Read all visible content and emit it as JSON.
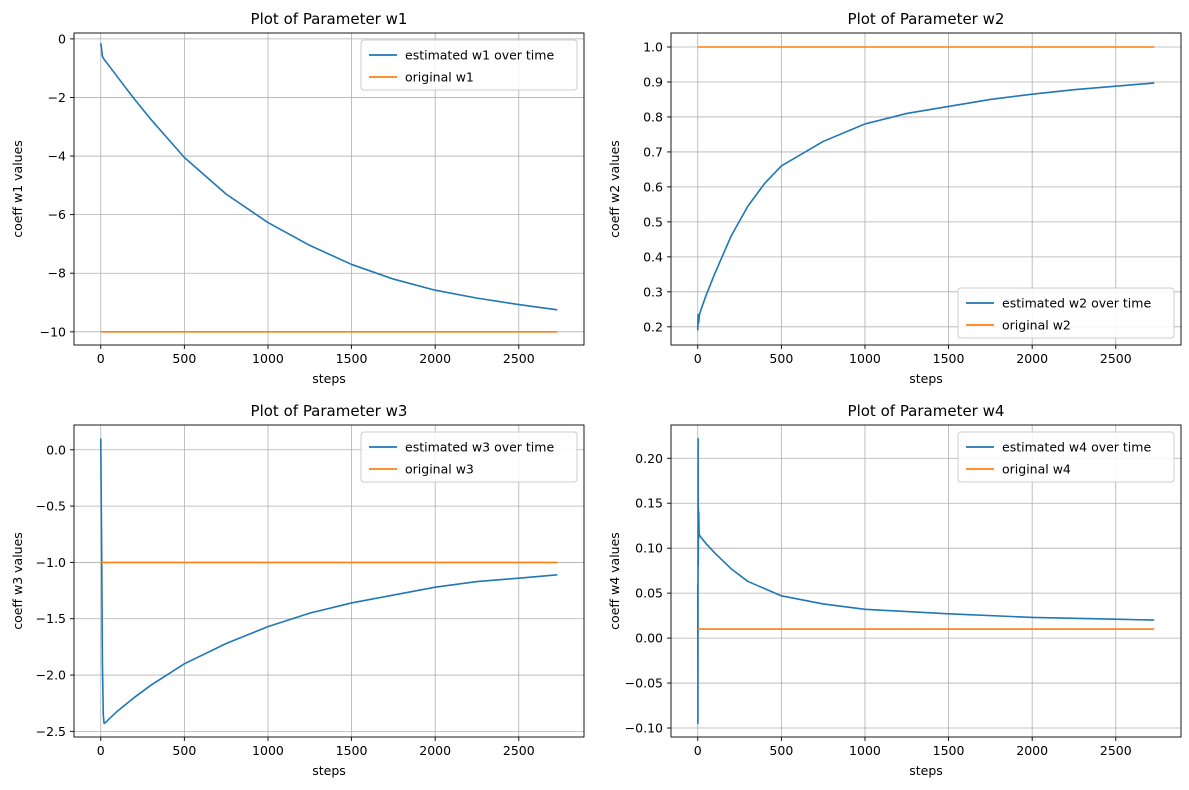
{
  "colors": {
    "estimated": "#1f77b4",
    "original": "#ff7f0e",
    "grid": "#b0b0b0",
    "axes": "#000000"
  },
  "chart_data": [
    {
      "type": "line",
      "title": "Plot of Parameter w1",
      "xlabel": "steps",
      "ylabel": "coeff w1 values",
      "xlim": [
        -160,
        2890
      ],
      "ylim": [
        -10.45,
        0.2
      ],
      "xticks": [
        0,
        500,
        1000,
        1500,
        2000,
        2500
      ],
      "yticks": [
        -10,
        -8,
        -6,
        -4,
        -2,
        0
      ],
      "yticklabels": [
        "−10",
        "−8",
        "−6",
        "−4",
        "−2",
        "0"
      ],
      "grid": true,
      "legend_position": "upper right",
      "series": [
        {
          "name": "estimated w1 over time",
          "color": "#1f77b4",
          "x": [
            0,
            5,
            10,
            20,
            50,
            100,
            200,
            300,
            500,
            750,
            1000,
            1250,
            1500,
            1750,
            2000,
            2250,
            2500,
            2730
          ],
          "y": [
            -0.15,
            -0.35,
            -0.6,
            -0.7,
            -0.92,
            -1.3,
            -2.05,
            -2.75,
            -4.05,
            -5.3,
            -6.27,
            -7.05,
            -7.7,
            -8.2,
            -8.58,
            -8.85,
            -9.07,
            -9.25
          ]
        },
        {
          "name": "original w1",
          "color": "#ff7f0e",
          "x": [
            0,
            2730
          ],
          "y": [
            -10,
            -10
          ]
        }
      ]
    },
    {
      "type": "line",
      "title": "Plot of Parameter  w2",
      "xlabel": "steps",
      "ylabel": "coeff  w2 values",
      "xlim": [
        -160,
        2890
      ],
      "ylim": [
        0.148,
        1.04
      ],
      "xticks": [
        0,
        500,
        1000,
        1500,
        2000,
        2500
      ],
      "yticks": [
        0.2,
        0.3,
        0.4,
        0.5,
        0.6,
        0.7,
        0.8,
        0.9,
        1.0
      ],
      "yticklabels": [
        "0.2",
        "0.3",
        "0.4",
        "0.5",
        "0.6",
        "0.7",
        "0.8",
        "0.9",
        "1.0"
      ],
      "grid": true,
      "legend_position": "lower right",
      "series": [
        {
          "name": "estimated  w2 over time",
          "color": "#1f77b4",
          "x": [
            0,
            2,
            5,
            10,
            20,
            50,
            100,
            200,
            300,
            400,
            500,
            750,
            1000,
            1250,
            1500,
            1750,
            2000,
            2250,
            2500,
            2730
          ],
          "y": [
            0.19,
            0.235,
            0.21,
            0.235,
            0.25,
            0.29,
            0.35,
            0.46,
            0.545,
            0.61,
            0.66,
            0.73,
            0.78,
            0.81,
            0.83,
            0.85,
            0.865,
            0.878,
            0.888,
            0.897
          ]
        },
        {
          "name": "original w2",
          "color": "#ff7f0e",
          "x": [
            0,
            2730
          ],
          "y": [
            1.0,
            1.0
          ]
        }
      ]
    },
    {
      "type": "line",
      "title": "Plot of Parameter w3",
      "xlabel": "steps",
      "ylabel": "coeff w3 values",
      "xlim": [
        -160,
        2890
      ],
      "ylim": [
        -2.55,
        0.22
      ],
      "xticks": [
        0,
        500,
        1000,
        1500,
        2000,
        2500
      ],
      "yticks": [
        -2.5,
        -2.0,
        -1.5,
        -1.0,
        -0.5,
        0.0
      ],
      "yticklabels": [
        "−2.5",
        "−2.0",
        "−1.5",
        "−1.0",
        "−0.5",
        "0.0"
      ],
      "grid": true,
      "legend_position": "upper right",
      "series": [
        {
          "name": "estimated w3 over time",
          "color": "#1f77b4",
          "x": [
            0,
            5,
            10,
            15,
            20,
            30,
            50,
            100,
            200,
            300,
            500,
            750,
            1000,
            1250,
            1500,
            1750,
            2000,
            2250,
            2500,
            2730
          ],
          "y": [
            0.1,
            -0.8,
            -1.9,
            -2.35,
            -2.43,
            -2.42,
            -2.39,
            -2.32,
            -2.2,
            -2.09,
            -1.9,
            -1.72,
            -1.57,
            -1.45,
            -1.36,
            -1.29,
            -1.22,
            -1.17,
            -1.14,
            -1.11
          ]
        },
        {
          "name": "original w3",
          "color": "#ff7f0e",
          "x": [
            0,
            2730
          ],
          "y": [
            -1.0,
            -1.0
          ]
        }
      ]
    },
    {
      "type": "line",
      "title": "Plot of Parameter w4",
      "xlabel": "steps",
      "ylabel": "coeff w4 values",
      "xlim": [
        -160,
        2890
      ],
      "ylim": [
        -0.11,
        0.237
      ],
      "xticks": [
        0,
        500,
        1000,
        1500,
        2000,
        2500
      ],
      "yticks": [
        -0.1,
        -0.05,
        0.0,
        0.05,
        0.1,
        0.15,
        0.2
      ],
      "yticklabels": [
        "−0.10",
        "−0.05",
        "0.00",
        "0.05",
        "0.10",
        "0.15",
        "0.20"
      ],
      "grid": true,
      "legend_position": "upper right",
      "series": [
        {
          "name": "estimated w4 over time",
          "color": "#1f77b4",
          "x": [
            0,
            1,
            2,
            3,
            4,
            5,
            6,
            8,
            10,
            15,
            20,
            50,
            100,
            200,
            300,
            500,
            750,
            1000,
            1500,
            2000,
            2500,
            2730
          ],
          "y": [
            0.06,
            -0.095,
            0.222,
            0.08,
            0.145,
            0.11,
            0.14,
            0.118,
            0.115,
            0.113,
            0.112,
            0.105,
            0.095,
            0.077,
            0.063,
            0.047,
            0.038,
            0.032,
            0.027,
            0.023,
            0.021,
            0.02
          ]
        },
        {
          "name": "original w4",
          "color": "#ff7f0e",
          "x": [
            0,
            2730
          ],
          "y": [
            0.01,
            0.01
          ]
        }
      ]
    }
  ]
}
